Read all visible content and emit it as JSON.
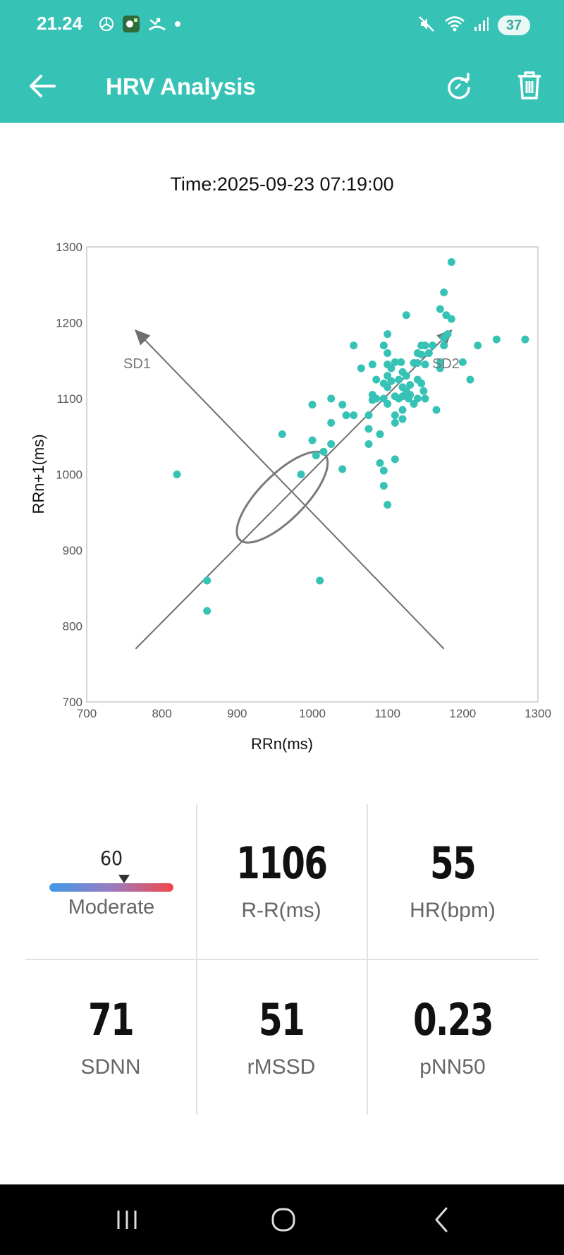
{
  "status_bar": {
    "time": "21.24",
    "battery": "37",
    "left_icons": [
      "mercedes-icon",
      "app-icon",
      "missed-call-icon",
      "dot-icon"
    ],
    "right_icons": [
      "mute-icon",
      "wifi-icon",
      "signal-icon"
    ]
  },
  "app_bar": {
    "title": "HRV Analysis",
    "background_color": "#36c3b6"
  },
  "measurement": {
    "time": "Time:2025-09-23 07:19:00"
  },
  "chart_data": {
    "type": "scatter",
    "title": "",
    "xlabel": "RRn(ms)",
    "ylabel": "RRn+1(ms)",
    "xlim": [
      700,
      1300
    ],
    "ylim": [
      700,
      1300
    ],
    "xticks": [
      700,
      800,
      900,
      1000,
      1100,
      1200,
      1300
    ],
    "yticks": [
      700,
      800,
      900,
      1000,
      1100,
      1200,
      1300
    ],
    "grid": false,
    "point_color": "#36c3b6",
    "annotations": [
      "SD1",
      "SD2"
    ],
    "sd_axes": {
      "sd2_line": [
        [
          765,
          770
        ],
        [
          1185,
          1190
        ]
      ],
      "sd1_line": [
        [
          1175,
          770
        ],
        [
          765,
          1190
        ]
      ]
    },
    "ellipse": {
      "center": [
        960,
        970
      ],
      "sd1": 30,
      "sd2": 80,
      "angle_deg": 45
    },
    "points": [
      [
        820,
        1000
      ],
      [
        860,
        860
      ],
      [
        860,
        820
      ],
      [
        960,
        1053
      ],
      [
        985,
        1000
      ],
      [
        1000,
        1045
      ],
      [
        1005,
        1025
      ],
      [
        1010,
        860
      ],
      [
        1015,
        1030
      ],
      [
        1000,
        1092
      ],
      [
        1025,
        1100
      ],
      [
        1025,
        1068
      ],
      [
        1025,
        1040
      ],
      [
        1040,
        1007
      ],
      [
        1040,
        1092
      ],
      [
        1045,
        1078
      ],
      [
        1055,
        1078
      ],
      [
        1055,
        1170
      ],
      [
        1065,
        1140
      ],
      [
        1075,
        1078
      ],
      [
        1075,
        1060
      ],
      [
        1075,
        1040
      ],
      [
        1080,
        1145
      ],
      [
        1080,
        1105
      ],
      [
        1080,
        1098
      ],
      [
        1085,
        1125
      ],
      [
        1085,
        1100
      ],
      [
        1090,
        1053
      ],
      [
        1090,
        1015
      ],
      [
        1095,
        1170
      ],
      [
        1095,
        1120
      ],
      [
        1095,
        1100
      ],
      [
        1095,
        1005
      ],
      [
        1095,
        985
      ],
      [
        1100,
        1185
      ],
      [
        1100,
        1160
      ],
      [
        1100,
        1145
      ],
      [
        1100,
        1130
      ],
      [
        1100,
        1115
      ],
      [
        1100,
        1093
      ],
      [
        1100,
        960
      ],
      [
        1105,
        1140
      ],
      [
        1105,
        1123
      ],
      [
        1110,
        1148
      ],
      [
        1110,
        1103
      ],
      [
        1110,
        1078
      ],
      [
        1110,
        1068
      ],
      [
        1110,
        1020
      ],
      [
        1115,
        1125
      ],
      [
        1115,
        1100
      ],
      [
        1118,
        1148
      ],
      [
        1120,
        1135
      ],
      [
        1120,
        1115
      ],
      [
        1120,
        1103
      ],
      [
        1120,
        1085
      ],
      [
        1120,
        1073
      ],
      [
        1125,
        1210
      ],
      [
        1125,
        1130
      ],
      [
        1125,
        1110
      ],
      [
        1128,
        1100
      ],
      [
        1130,
        1118
      ],
      [
        1130,
        1105
      ],
      [
        1135,
        1147
      ],
      [
        1135,
        1093
      ],
      [
        1140,
        1160
      ],
      [
        1140,
        1147
      ],
      [
        1140,
        1125
      ],
      [
        1140,
        1100
      ],
      [
        1145,
        1170
      ],
      [
        1145,
        1158
      ],
      [
        1145,
        1120
      ],
      [
        1148,
        1110
      ],
      [
        1150,
        1170
      ],
      [
        1150,
        1145
      ],
      [
        1150,
        1100
      ],
      [
        1155,
        1160
      ],
      [
        1160,
        1170
      ],
      [
        1165,
        1085
      ],
      [
        1170,
        1148
      ],
      [
        1170,
        1140
      ],
      [
        1170,
        1218
      ],
      [
        1175,
        1170
      ],
      [
        1175,
        1180
      ],
      [
        1175,
        1240
      ],
      [
        1178,
        1210
      ],
      [
        1180,
        1185
      ],
      [
        1185,
        1205
      ],
      [
        1185,
        1280
      ],
      [
        1200,
        1148
      ],
      [
        1210,
        1125
      ],
      [
        1220,
        1170
      ],
      [
        1245,
        1178
      ],
      [
        1283,
        1178
      ]
    ]
  },
  "metrics": {
    "stress": {
      "value": "60",
      "label": "Moderate",
      "level_percent": 60
    },
    "rr": {
      "value": "1106",
      "label": "R-R(ms)"
    },
    "hr": {
      "value": "55",
      "label": "HR(bpm)"
    },
    "sdnn": {
      "value": "71",
      "label": "SDNN"
    },
    "rmssd": {
      "value": "51",
      "label": "rMSSD"
    },
    "pnn50": {
      "value": "0.23",
      "label": "pNN50"
    }
  },
  "nav_bar": {
    "buttons": [
      "recents-icon",
      "home-icon",
      "back-nav-icon"
    ]
  }
}
